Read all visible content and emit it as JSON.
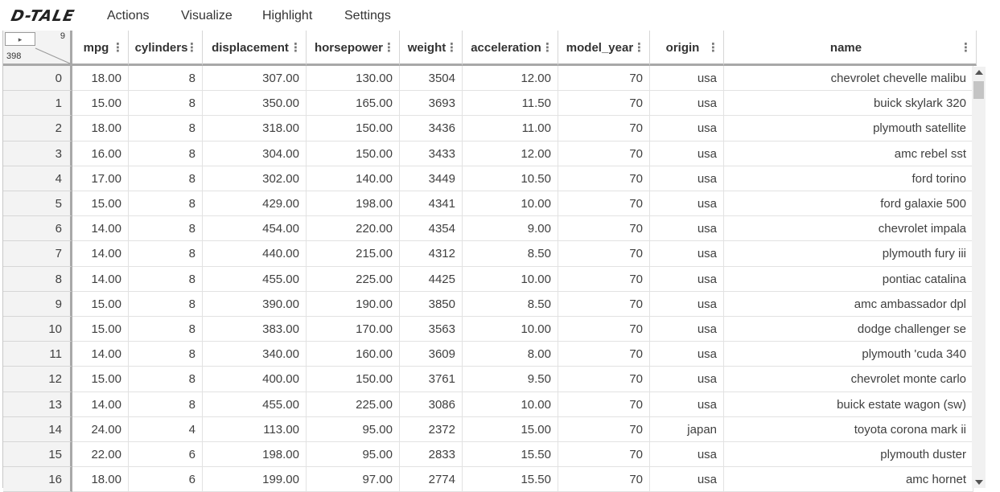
{
  "app": {
    "logo": "D-TALE"
  },
  "menu": [
    "Actions",
    "Visualize",
    "Highlight",
    "Settings"
  ],
  "corner": {
    "button_label": "▸",
    "column_count": "9",
    "row_count": "398"
  },
  "columns": [
    "mpg",
    "cylinders",
    "displacement",
    "horsepower",
    "weight",
    "acceleration",
    "model_year",
    "origin",
    "name"
  ],
  "icons": {
    "column_menu": "dots-vertical-icon",
    "scroll_up": "arrow-up-icon",
    "scroll_down": "arrow-down-icon"
  },
  "rows": [
    [
      "0",
      "18.00",
      "8",
      "307.00",
      "130.00",
      "3504",
      "12.00",
      "70",
      "usa",
      "chevrolet chevelle malibu"
    ],
    [
      "1",
      "15.00",
      "8",
      "350.00",
      "165.00",
      "3693",
      "11.50",
      "70",
      "usa",
      "buick skylark 320"
    ],
    [
      "2",
      "18.00",
      "8",
      "318.00",
      "150.00",
      "3436",
      "11.00",
      "70",
      "usa",
      "plymouth satellite"
    ],
    [
      "3",
      "16.00",
      "8",
      "304.00",
      "150.00",
      "3433",
      "12.00",
      "70",
      "usa",
      "amc rebel sst"
    ],
    [
      "4",
      "17.00",
      "8",
      "302.00",
      "140.00",
      "3449",
      "10.50",
      "70",
      "usa",
      "ford torino"
    ],
    [
      "5",
      "15.00",
      "8",
      "429.00",
      "198.00",
      "4341",
      "10.00",
      "70",
      "usa",
      "ford galaxie 500"
    ],
    [
      "6",
      "14.00",
      "8",
      "454.00",
      "220.00",
      "4354",
      "9.00",
      "70",
      "usa",
      "chevrolet impala"
    ],
    [
      "7",
      "14.00",
      "8",
      "440.00",
      "215.00",
      "4312",
      "8.50",
      "70",
      "usa",
      "plymouth fury iii"
    ],
    [
      "8",
      "14.00",
      "8",
      "455.00",
      "225.00",
      "4425",
      "10.00",
      "70",
      "usa",
      "pontiac catalina"
    ],
    [
      "9",
      "15.00",
      "8",
      "390.00",
      "190.00",
      "3850",
      "8.50",
      "70",
      "usa",
      "amc ambassador dpl"
    ],
    [
      "10",
      "15.00",
      "8",
      "383.00",
      "170.00",
      "3563",
      "10.00",
      "70",
      "usa",
      "dodge challenger se"
    ],
    [
      "11",
      "14.00",
      "8",
      "340.00",
      "160.00",
      "3609",
      "8.00",
      "70",
      "usa",
      "plymouth 'cuda 340"
    ],
    [
      "12",
      "15.00",
      "8",
      "400.00",
      "150.00",
      "3761",
      "9.50",
      "70",
      "usa",
      "chevrolet monte carlo"
    ],
    [
      "13",
      "14.00",
      "8",
      "455.00",
      "225.00",
      "3086",
      "10.00",
      "70",
      "usa",
      "buick estate wagon (sw)"
    ],
    [
      "14",
      "24.00",
      "4",
      "113.00",
      "95.00",
      "2372",
      "15.00",
      "70",
      "japan",
      "toyota corona mark ii"
    ],
    [
      "15",
      "22.00",
      "6",
      "198.00",
      "95.00",
      "2833",
      "15.50",
      "70",
      "usa",
      "plymouth duster"
    ],
    [
      "16",
      "18.00",
      "6",
      "199.00",
      "97.00",
      "2774",
      "15.50",
      "70",
      "usa",
      "amc hornet"
    ]
  ]
}
